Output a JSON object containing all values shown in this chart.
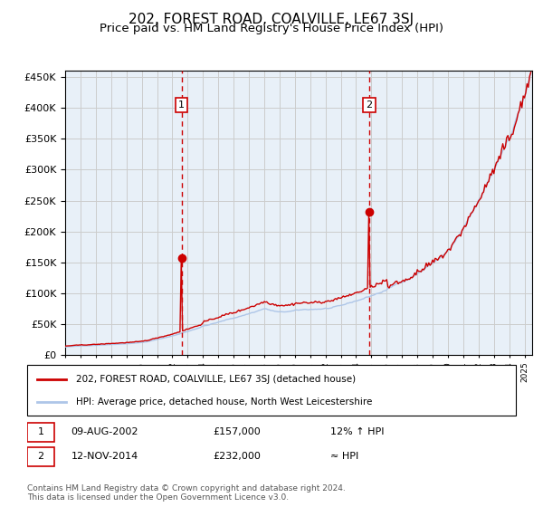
{
  "title": "202, FOREST ROAD, COALVILLE, LE67 3SJ",
  "subtitle": "Price paid vs. HM Land Registry's House Price Index (HPI)",
  "title_fontsize": 11,
  "subtitle_fontsize": 9.5,
  "ylim": [
    0,
    460000
  ],
  "yticks": [
    0,
    50000,
    100000,
    150000,
    200000,
    250000,
    300000,
    350000,
    400000,
    450000
  ],
  "xlim_start": 1995.0,
  "xlim_end": 2025.5,
  "background_color": "#ffffff",
  "plot_bg_color": "#e8f0f8",
  "grid_color": "#cccccc",
  "hpi_color": "#aec6e8",
  "price_color": "#cc0000",
  "marker_color": "#cc0000",
  "vline_color": "#cc0000",
  "legend_entry1": "202, FOREST ROAD, COALVILLE, LE67 3SJ (detached house)",
  "legend_entry2": "HPI: Average price, detached house, North West Leicestershire",
  "sale1_label": "1",
  "sale1_date": "09-AUG-2002",
  "sale1_price": "£157,000",
  "sale1_hpi": "12% ↑ HPI",
  "sale1_year": 2002.6,
  "sale1_value": 157000,
  "sale2_label": "2",
  "sale2_date": "12-NOV-2014",
  "sale2_price": "£232,000",
  "sale2_hpi": "≈ HPI",
  "sale2_year": 2014.87,
  "sale2_value": 232000,
  "copyright_text": "Contains HM Land Registry data © Crown copyright and database right 2024.\nThis data is licensed under the Open Government Licence v3.0.",
  "shaded_region_start": 2002.6,
  "shaded_region_end": 2014.87
}
